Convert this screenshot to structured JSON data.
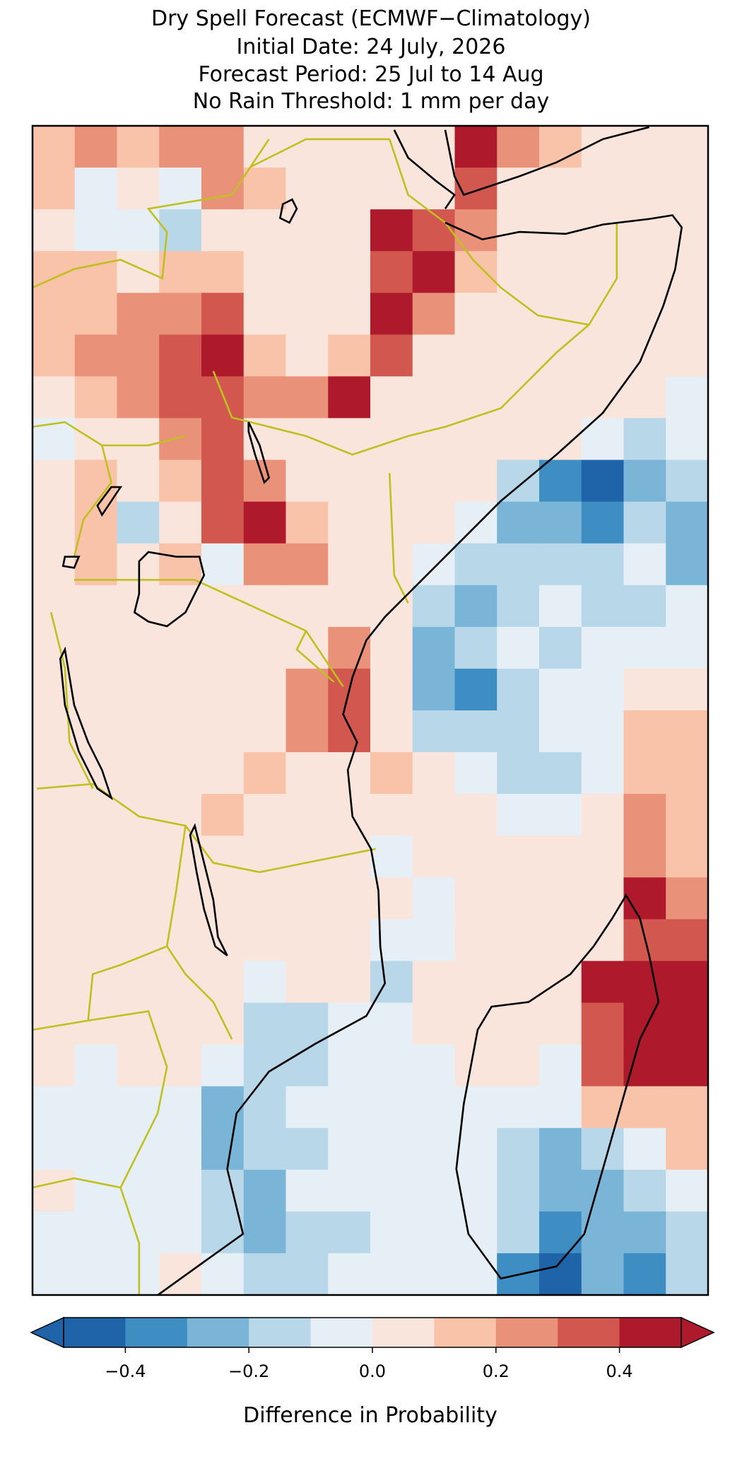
{
  "chart_data": {
    "type": "heatmap",
    "title": "Dry Spell Forecast (ECMWF−Climatology)",
    "subtitles": [
      "Initial Date: 24 July, 2026",
      "Forecast Period: 25 Jul to 14 Aug",
      "No Rain Threshold: 1 mm per day"
    ],
    "z": [
      [
        0.15,
        0.25,
        0.15,
        0.25,
        0.25,
        0.05,
        0.05,
        0.05,
        0.05,
        0.05,
        0.45,
        0.25,
        0.15,
        0.05,
        0.05,
        0.05
      ],
      [
        0.15,
        -0.05,
        0.05,
        -0.05,
        0.25,
        0.15,
        0.05,
        0.05,
        0.05,
        0.05,
        0.35,
        0.05,
        0.05,
        0.05,
        0.05,
        0.05
      ],
      [
        0.05,
        -0.05,
        -0.05,
        -0.15,
        0.05,
        0.05,
        0.05,
        0.05,
        0.45,
        0.35,
        0.25,
        0.05,
        0.05,
        0.05,
        0.05,
        0.05
      ],
      [
        0.15,
        0.15,
        0.05,
        0.15,
        0.15,
        0.05,
        0.05,
        0.05,
        0.35,
        0.45,
        0.15,
        0.05,
        0.05,
        0.05,
        0.05,
        0.05
      ],
      [
        0.15,
        0.15,
        0.25,
        0.25,
        0.35,
        0.05,
        0.05,
        0.05,
        0.45,
        0.25,
        0.05,
        0.05,
        0.05,
        0.05,
        0.05,
        0.05
      ],
      [
        0.15,
        0.25,
        0.25,
        0.35,
        0.45,
        0.15,
        0.05,
        0.15,
        0.35,
        0.05,
        0.05,
        0.05,
        0.05,
        0.05,
        0.05,
        0.05
      ],
      [
        0.05,
        0.15,
        0.25,
        0.35,
        0.35,
        0.25,
        0.25,
        0.45,
        0.05,
        0.05,
        0.05,
        0.05,
        0.05,
        0.05,
        0.05,
        -0.05
      ],
      [
        -0.05,
        0.05,
        0.05,
        0.25,
        0.35,
        0.05,
        0.05,
        0.05,
        0.05,
        0.05,
        0.05,
        0.05,
        0.05,
        -0.05,
        -0.15,
        -0.05
      ],
      [
        0.05,
        0.15,
        0.05,
        0.15,
        0.35,
        0.25,
        0.05,
        0.05,
        0.05,
        0.05,
        0.05,
        -0.15,
        -0.35,
        -0.45,
        -0.25,
        -0.15
      ],
      [
        0.05,
        0.15,
        -0.15,
        0.05,
        0.35,
        0.45,
        0.15,
        0.05,
        0.05,
        0.05,
        -0.05,
        -0.25,
        -0.25,
        -0.35,
        -0.15,
        -0.25
      ],
      [
        0.05,
        0.15,
        0.05,
        0.15,
        -0.05,
        0.25,
        0.25,
        0.05,
        0.05,
        -0.05,
        -0.15,
        -0.15,
        -0.15,
        -0.15,
        -0.05,
        -0.25
      ],
      [
        0.05,
        0.05,
        0.05,
        0.05,
        0.05,
        0.05,
        0.05,
        0.05,
        0.05,
        -0.15,
        -0.25,
        -0.15,
        -0.05,
        -0.15,
        -0.15,
        -0.05
      ],
      [
        0.05,
        0.05,
        0.05,
        0.05,
        0.05,
        0.05,
        0.05,
        0.25,
        0.05,
        -0.25,
        -0.15,
        -0.05,
        -0.15,
        -0.05,
        -0.05,
        -0.05
      ],
      [
        0.05,
        0.05,
        0.05,
        0.05,
        0.05,
        0.05,
        0.25,
        0.35,
        0.05,
        -0.25,
        -0.35,
        -0.15,
        -0.05,
        -0.05,
        0.05,
        0.05
      ],
      [
        0.05,
        0.05,
        0.05,
        0.05,
        0.05,
        0.05,
        0.25,
        0.35,
        0.05,
        -0.15,
        -0.15,
        -0.15,
        -0.05,
        -0.05,
        0.15,
        0.15
      ],
      [
        0.05,
        0.05,
        0.05,
        0.05,
        0.05,
        0.15,
        0.05,
        0.05,
        0.15,
        0.05,
        -0.05,
        -0.15,
        -0.15,
        -0.05,
        0.15,
        0.15
      ],
      [
        0.05,
        0.05,
        0.05,
        0.05,
        0.15,
        0.05,
        0.05,
        0.05,
        0.05,
        0.05,
        0.05,
        -0.05,
        -0.05,
        0.05,
        0.25,
        0.15
      ],
      [
        0.05,
        0.05,
        0.05,
        0.05,
        0.05,
        0.05,
        0.05,
        0.05,
        -0.05,
        0.05,
        0.05,
        0.05,
        0.05,
        0.05,
        0.25,
        0.15
      ],
      [
        0.05,
        0.05,
        0.05,
        0.05,
        0.05,
        0.05,
        0.05,
        0.05,
        0.05,
        -0.05,
        0.05,
        0.05,
        0.05,
        0.05,
        0.45,
        0.25
      ],
      [
        0.05,
        0.05,
        0.05,
        0.05,
        0.05,
        0.05,
        0.05,
        0.05,
        -0.05,
        -0.05,
        0.05,
        0.05,
        0.05,
        0.05,
        0.35,
        0.35
      ],
      [
        0.05,
        0.05,
        0.05,
        0.05,
        0.05,
        -0.05,
        0.05,
        0.05,
        -0.15,
        0.05,
        0.05,
        0.05,
        0.05,
        0.45,
        0.45,
        0.45
      ],
      [
        0.05,
        0.05,
        0.05,
        0.05,
        0.05,
        -0.15,
        -0.15,
        -0.05,
        -0.05,
        0.05,
        0.05,
        0.05,
        0.05,
        0.35,
        0.45,
        0.45
      ],
      [
        0.05,
        -0.05,
        0.05,
        0.05,
        -0.05,
        -0.15,
        -0.15,
        -0.05,
        -0.05,
        -0.05,
        0.05,
        0.05,
        -0.05,
        0.35,
        0.45,
        0.45
      ],
      [
        -0.05,
        -0.05,
        -0.05,
        -0.05,
        -0.25,
        -0.15,
        -0.05,
        -0.05,
        -0.05,
        -0.05,
        -0.05,
        -0.05,
        -0.05,
        0.15,
        0.15,
        0.15
      ],
      [
        -0.05,
        -0.05,
        -0.05,
        -0.05,
        -0.25,
        -0.15,
        -0.15,
        -0.05,
        -0.05,
        -0.05,
        -0.05,
        -0.15,
        -0.25,
        -0.15,
        -0.05,
        0.15
      ],
      [
        0.05,
        -0.05,
        -0.05,
        -0.05,
        -0.15,
        -0.25,
        -0.05,
        -0.05,
        -0.05,
        -0.05,
        -0.05,
        -0.15,
        -0.25,
        -0.25,
        -0.15,
        -0.05
      ],
      [
        -0.05,
        -0.05,
        -0.05,
        -0.05,
        -0.15,
        -0.25,
        -0.15,
        -0.15,
        -0.05,
        -0.05,
        -0.05,
        -0.15,
        -0.35,
        -0.25,
        -0.25,
        -0.15
      ],
      [
        -0.05,
        -0.05,
        -0.05,
        0.05,
        -0.05,
        -0.15,
        -0.15,
        -0.05,
        -0.05,
        -0.05,
        -0.05,
        -0.35,
        -0.45,
        -0.25,
        -0.35,
        -0.15
      ]
    ],
    "colorbar": {
      "label": "Difference in Probability",
      "extend": "both",
      "levels": [
        -0.5,
        -0.4,
        -0.3,
        -0.2,
        -0.1,
        0,
        0.1,
        0.2,
        0.3,
        0.4,
        0.5
      ],
      "colors": [
        "#1f63a8",
        "#3f8ec3",
        "#7ab5d8",
        "#b8d8ea",
        "#e6eff5",
        "#f9e5dc",
        "#f8c3a8",
        "#ea917a",
        "#d1574f",
        "#ae1a2c"
      ],
      "ticks": [
        {
          "value": -0.4,
          "label": "−0.4"
        },
        {
          "value": -0.2,
          "label": "−0.2"
        },
        {
          "value": 0,
          "label": "0.0"
        },
        0.2,
        0.4
      ]
    }
  }
}
